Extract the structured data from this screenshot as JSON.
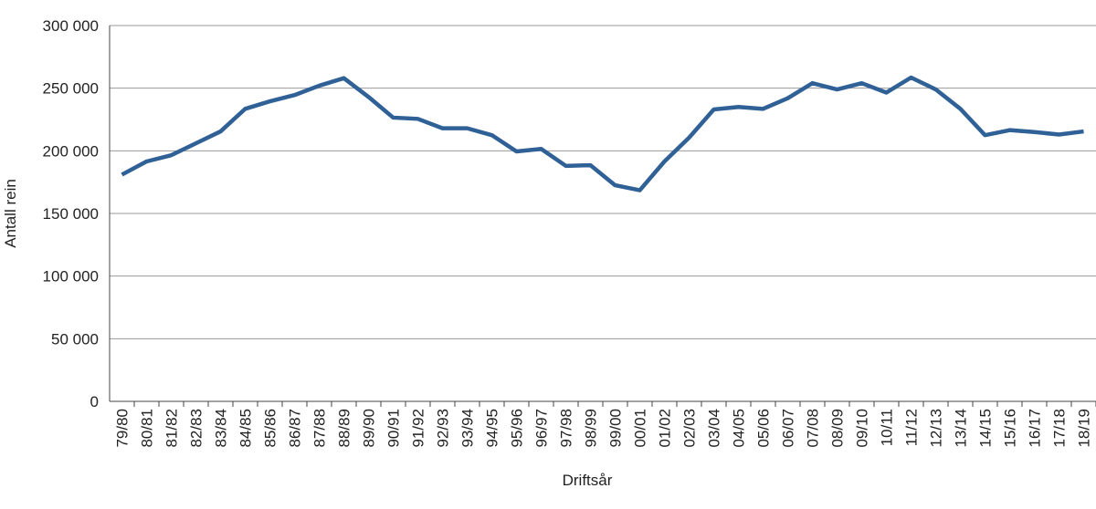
{
  "chart_data": {
    "type": "line",
    "x_label": "Driftsår",
    "y_label": "Antall rein",
    "categories": [
      "79/80",
      "80/81",
      "81/82",
      "82/83",
      "83/84",
      "84/85",
      "85/86",
      "86/87",
      "87/88",
      "88/89",
      "89/90",
      "90/91",
      "91/92",
      "92/93",
      "93/94",
      "94/95",
      "95/96",
      "96/97",
      "97/98",
      "98/99",
      "99/00",
      "00/01",
      "01/02",
      "02/03",
      "03/04",
      "04/05",
      "05/06",
      "06/07",
      "07/08",
      "08/09",
      "09/10",
      "10/11",
      "11/12",
      "12/13",
      "13/14",
      "14/15",
      "15/16",
      "16/17",
      "17/18",
      "18/19"
    ],
    "series": [
      {
        "color": "#2f6096",
        "values": [
          181000,
          191500,
          196500,
          206000,
          215500,
          233500,
          239500,
          244500,
          252000,
          258000,
          243000,
          226500,
          225500,
          218000,
          218000,
          212500,
          199500,
          201500,
          188000,
          188500,
          172500,
          168500,
          191500,
          210500,
          233000,
          235000,
          233500,
          242000,
          254000,
          249000,
          254000,
          246500,
          258500,
          249000,
          233500,
          212500,
          216500,
          215000,
          213000,
          215500
        ]
      }
    ],
    "ylim": [
      0,
      300000
    ],
    "yticks": [
      {
        "value": 0,
        "label": "0"
      },
      {
        "value": 50000,
        "label": "50 000"
      },
      {
        "value": 100000,
        "label": "100 000"
      },
      {
        "value": 150000,
        "label": "150 000"
      },
      {
        "value": 200000,
        "label": "200 000"
      },
      {
        "value": 250000,
        "label": "250 000"
      },
      {
        "value": 300000,
        "label": "300 000"
      }
    ],
    "grid": true
  }
}
